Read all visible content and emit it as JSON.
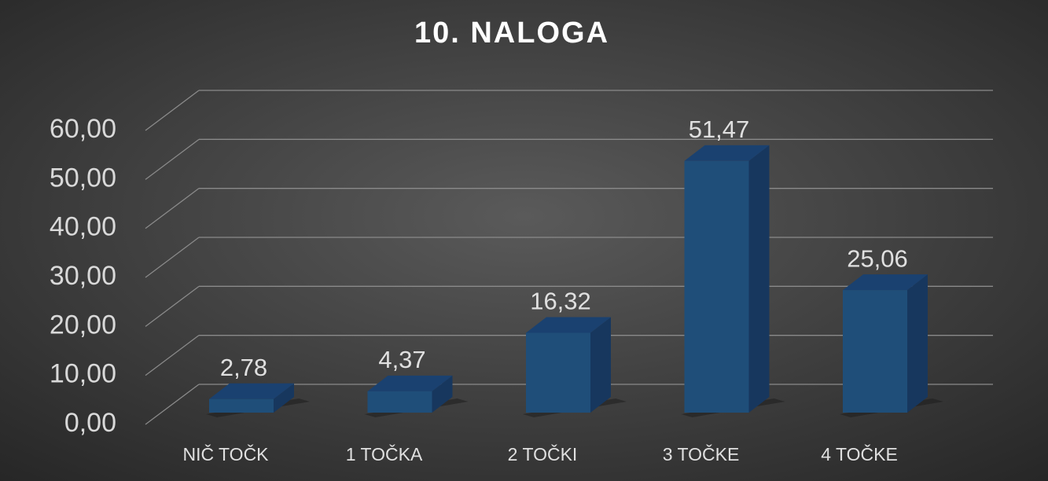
{
  "chart_data": {
    "type": "bar3d",
    "title": "10. NALOGA",
    "categories": [
      "NIČ TOČK",
      "1 TOČKA",
      "2 TOČKI",
      "3 TOČKE",
      "4 TOČKE"
    ],
    "values": [
      2.78,
      4.37,
      16.32,
      51.47,
      25.06
    ],
    "value_labels": [
      "2,78",
      "4,37",
      "16,32",
      "51,47",
      "25,06"
    ],
    "color": "#1f4e79",
    "ylim": [
      0,
      60
    ],
    "yticks": [
      {
        "value": 0,
        "label": "0,00"
      },
      {
        "value": 10,
        "label": "10,00"
      },
      {
        "value": 20,
        "label": "20,00"
      },
      {
        "value": 30,
        "label": "30,00"
      },
      {
        "value": 40,
        "label": "40,00"
      },
      {
        "value": 50,
        "label": "50,00"
      },
      {
        "value": 60,
        "label": "60,00"
      }
    ],
    "grid": true
  }
}
